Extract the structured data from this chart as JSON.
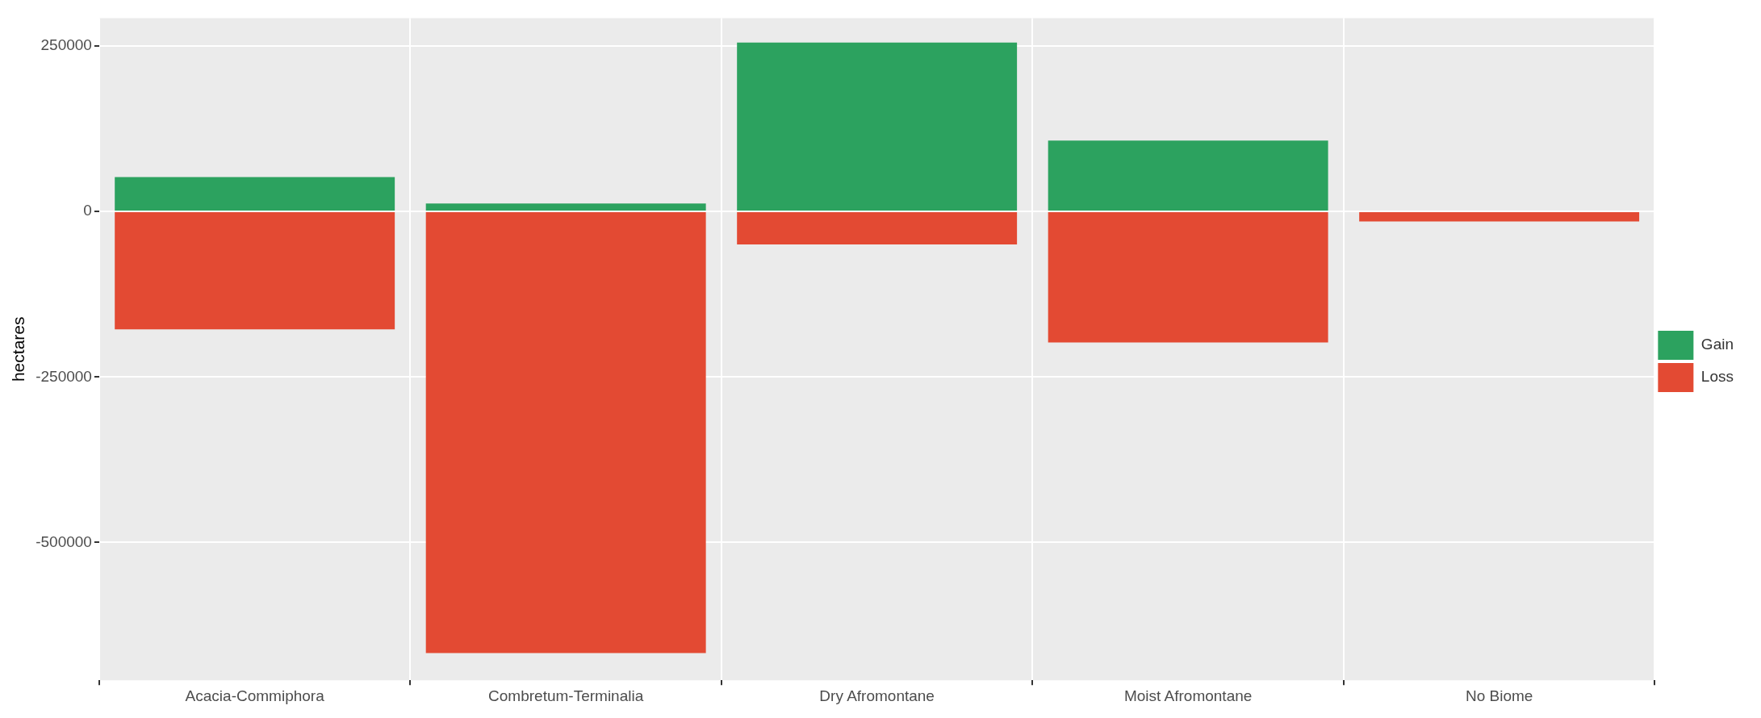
{
  "chart_data": {
    "type": "bar",
    "ylabel": "hectares",
    "stacked": true,
    "grid": true,
    "legend": "right",
    "categories": [
      "Acacia-Commiphora",
      "Combretum-Terminalia",
      "Dry Afromontane",
      "Moist Afromontane",
      "No Biome"
    ],
    "series": [
      {
        "name": "Gain",
        "color": "#2ca25f",
        "values": [
          52000,
          12000,
          255000,
          107000,
          0
        ]
      },
      {
        "name": "Loss",
        "color": "#e34a33",
        "values": [
          -178000,
          -667000,
          -50000,
          -198000,
          -15000
        ]
      }
    ],
    "ylim": [
      -708000,
      292000
    ],
    "yticks": [
      -500000,
      -250000,
      0,
      250000
    ]
  }
}
